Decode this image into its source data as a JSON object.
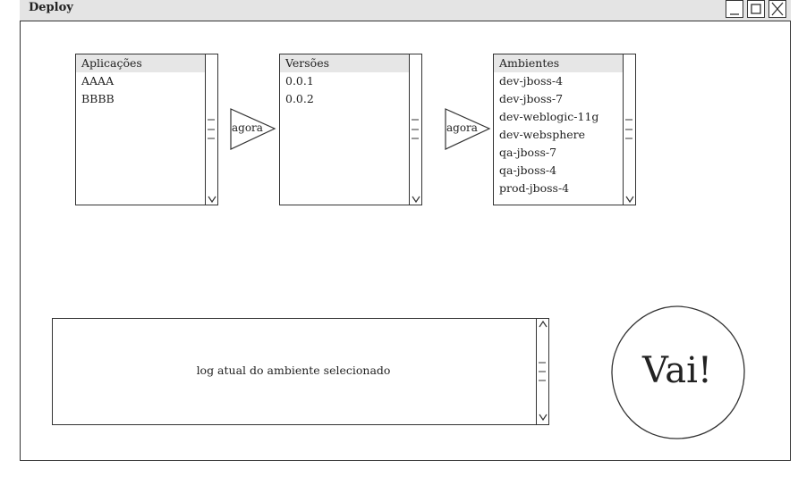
{
  "window": {
    "title": "Deploy"
  },
  "applications": {
    "header": "Aplicações",
    "items": [
      "AAAA",
      "BBBB"
    ]
  },
  "arrow1": {
    "label": "agora"
  },
  "versions": {
    "header": "Versões",
    "items": [
      "0.0.1",
      "0.0.2"
    ]
  },
  "arrow2": {
    "label": "agora"
  },
  "environments": {
    "header": "Ambientes",
    "items": [
      "dev-jboss-4",
      "dev-jboss-7",
      "dev-weblogic-11g",
      "dev-websphere",
      "qa-jboss-7",
      "qa-jboss-4",
      "prod-jboss-4"
    ]
  },
  "log": {
    "text": "log atual do ambiente selecionado"
  },
  "go": {
    "label": "Vai!"
  }
}
